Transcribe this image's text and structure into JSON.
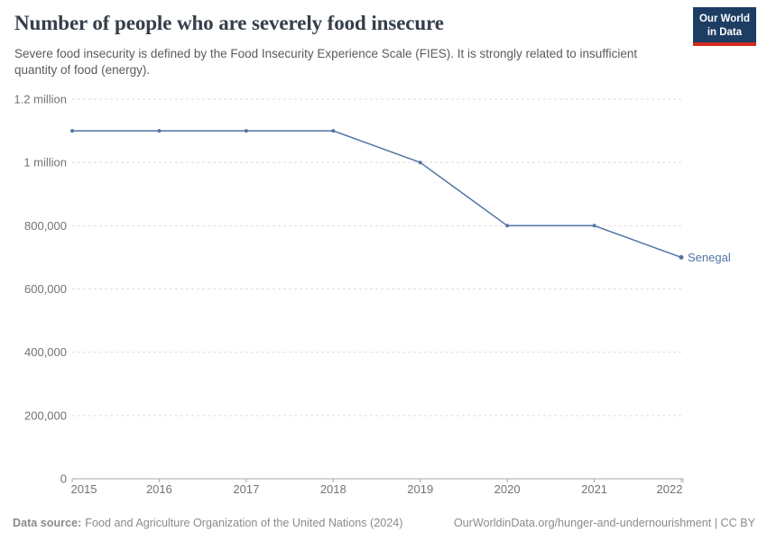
{
  "header": {
    "title": "Number of people who are severely food insecure",
    "subtitle": "Severe food insecurity is defined by the Food Insecurity Experience Scale (FIES). It is strongly related to insufficient quantity of food (energy).",
    "logo": {
      "line1": "Our World",
      "line2": "in Data",
      "bg_color": "#1d3d63",
      "accent_color": "#d42b21"
    }
  },
  "chart_data": {
    "type": "line",
    "title": "Number of people who are severely food insecure",
    "xlabel": "",
    "ylabel": "",
    "x": [
      2015,
      2016,
      2017,
      2018,
      2019,
      2020,
      2021,
      2022
    ],
    "series": [
      {
        "name": "Senegal",
        "values": [
          1100000,
          1100000,
          1100000,
          1100000,
          1000000,
          800000,
          800000,
          700000
        ],
        "color": "#5274a5"
      }
    ],
    "ylim": [
      0,
      1200000
    ],
    "yticks": [
      {
        "value": 0,
        "label": "0"
      },
      {
        "value": 200000,
        "label": "200,000"
      },
      {
        "value": 400000,
        "label": "400,000"
      },
      {
        "value": 600000,
        "label": "600,000"
      },
      {
        "value": 800000,
        "label": "800,000"
      },
      {
        "value": 1000000,
        "label": "1 million"
      },
      {
        "value": 1200000,
        "label": "1.2 million"
      }
    ],
    "grid": true,
    "legend_position": "end-of-line",
    "marker": "dot"
  },
  "footer": {
    "datasource_label": "Data source:",
    "datasource": "Food and Agriculture Organization of the United Nations (2024)",
    "link": "OurWorldinData.org/hunger-and-undernourishment | CC BY"
  }
}
